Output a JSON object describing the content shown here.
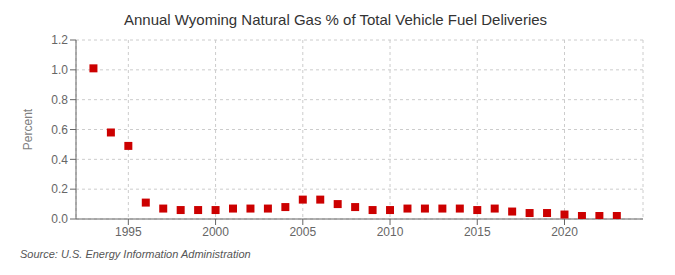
{
  "chart_data": {
    "type": "scatter",
    "title": "Annual Wyoming Natural Gas % of Total Vehicle Fuel Deliveries",
    "ylabel": "Percent",
    "annotation": "Source: U.S. Energy Information Administration",
    "x": [
      1993,
      1994,
      1995,
      1996,
      1997,
      1998,
      1999,
      2000,
      2001,
      2002,
      2003,
      2004,
      2005,
      2006,
      2007,
      2008,
      2009,
      2010,
      2011,
      2012,
      2013,
      2014,
      2015,
      2016,
      2017,
      2018,
      2019,
      2020,
      2021,
      2022,
      2023
    ],
    "values": [
      1.01,
      0.58,
      0.49,
      0.11,
      0.07,
      0.06,
      0.06,
      0.06,
      0.07,
      0.07,
      0.07,
      0.08,
      0.13,
      0.13,
      0.1,
      0.08,
      0.06,
      0.06,
      0.07,
      0.07,
      0.07,
      0.07,
      0.06,
      0.07,
      0.05,
      0.04,
      0.04,
      0.03,
      0.02,
      0.02,
      0.02
    ],
    "color": "#cc0000",
    "marker": "square",
    "xlim": [
      1992.0,
      2024.5
    ],
    "ylim": [
      0.0,
      1.2
    ],
    "xticks": [
      1995,
      2000,
      2005,
      2010,
      2015,
      2020
    ],
    "yticks": [
      {
        "value": 0.0,
        "label": "0.0"
      },
      0.2,
      0.4,
      0.6,
      0.8,
      {
        "value": 1.0,
        "label": "1.0"
      },
      1.2
    ],
    "grid": true
  }
}
